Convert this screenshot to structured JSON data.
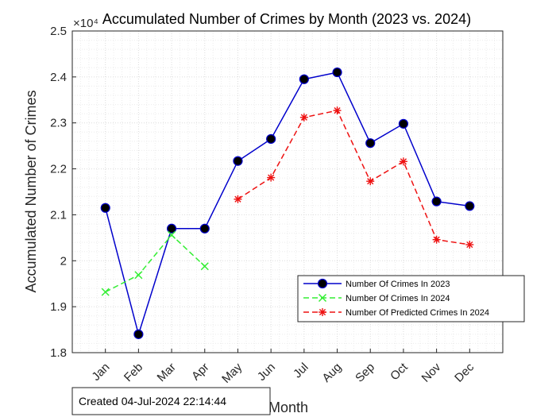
{
  "chart_data": {
    "type": "line",
    "title": "Accumulated Number of Crimes by Month (2023 vs. 2024)",
    "xlabel": "Month",
    "ylabel": "Accumulated Number of Crimes",
    "y_exponent_label": "×10⁴",
    "categories": [
      "Jan",
      "Feb",
      "Mar",
      "Apr",
      "May",
      "Jun",
      "Jul",
      "Aug",
      "Sep",
      "Oct",
      "Nov",
      "Dec"
    ],
    "yticks": [
      "1.8",
      "1.9",
      "2",
      "2.1",
      "2.2",
      "2.3",
      "2.4",
      "2.5"
    ],
    "ylim": [
      1.8,
      2.5
    ],
    "grid": "on (major and minor, dotted)",
    "legend_position": "lower-right",
    "series": [
      {
        "name": "Number Of Crimes In 2023",
        "color": "#0000cc",
        "marker": "filled-circle",
        "line": "solid",
        "values": [
          2.115,
          1.84,
          2.07,
          2.07,
          2.217,
          2.265,
          2.395,
          2.41,
          2.256,
          2.298,
          2.129,
          2.119
        ]
      },
      {
        "name": "Number Of Crimes In 2024",
        "color": "#33ee33",
        "marker": "x",
        "line": "dashed",
        "values": [
          1.932,
          1.969,
          2.056,
          1.988,
          null,
          null,
          null,
          null,
          null,
          null,
          null,
          null
        ]
      },
      {
        "name": "Number Of Predicted Crimes In 2024",
        "color": "#ee1111",
        "marker": "asterisk",
        "line": "dashed",
        "values": [
          null,
          null,
          null,
          null,
          2.134,
          2.181,
          2.312,
          2.327,
          2.173,
          2.216,
          2.046,
          2.035
        ]
      }
    ]
  },
  "footnote": "Created 04-Jul-2024 22:14:44"
}
